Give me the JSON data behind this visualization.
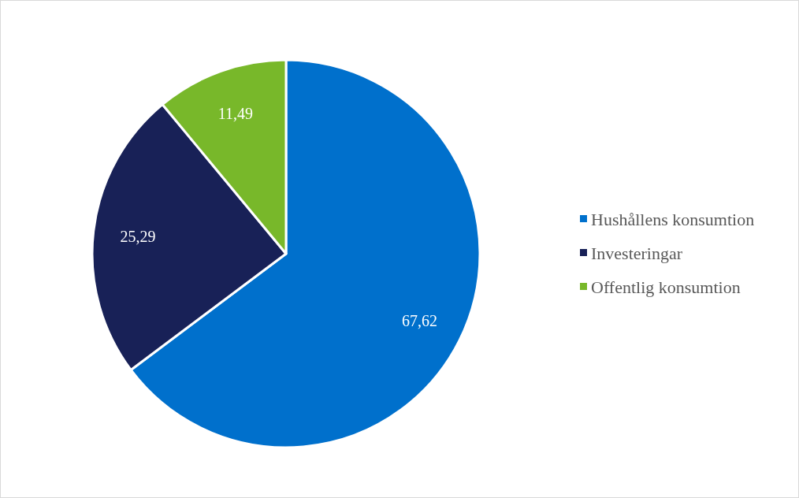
{
  "chart_data": {
    "type": "pie",
    "categories": [
      "Hushållens konsumtion",
      "Investeringar",
      "Offentlig konsumtion"
    ],
    "values": [
      67.62,
      25.29,
      11.49
    ],
    "colors": [
      "#0070cc",
      "#182157",
      "#78b82a"
    ],
    "value_labels": [
      "67,62",
      "25,29",
      "11,49"
    ],
    "legend": "right"
  }
}
